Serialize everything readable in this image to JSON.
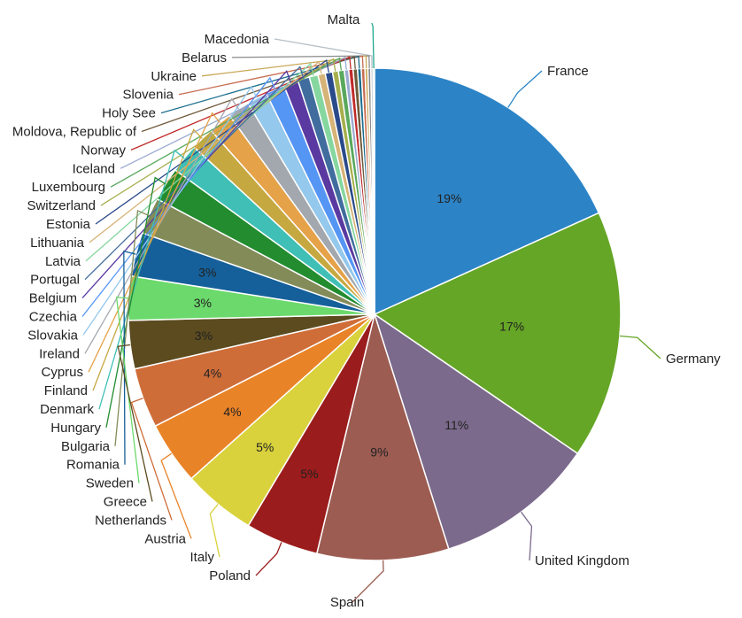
{
  "chart_data": {
    "type": "pie",
    "series": [
      {
        "name": "France",
        "value": 19.0,
        "label": "19%",
        "color": "#2c84c7"
      },
      {
        "name": "Germany",
        "value": 17.0,
        "label": "17%",
        "color": "#65a626"
      },
      {
        "name": "United Kingdom",
        "value": 11.0,
        "label": "11%",
        "color": "#7b6a8c"
      },
      {
        "name": "Spain",
        "value": 9.0,
        "label": "9%",
        "color": "#9c5c52"
      },
      {
        "name": "Poland",
        "value": 5.0,
        "label": "5%",
        "color": "#9b1c1c"
      },
      {
        "name": "Italy",
        "value": 5.0,
        "label": "5%",
        "color": "#d9d23c"
      },
      {
        "name": "Austria",
        "value": 4.3,
        "label": "4%",
        "color": "#e98327"
      },
      {
        "name": "Netherlands",
        "value": 4.1,
        "label": "4%",
        "color": "#cf6d39"
      },
      {
        "name": "Greece",
        "value": 3.3,
        "label": "3%",
        "color": "#5b4b1f"
      },
      {
        "name": "Sweden",
        "value": 3.0,
        "label": "3%",
        "color": "#6bd96b"
      },
      {
        "name": "Romania",
        "value": 3.0,
        "label": "3%",
        "color": "#15609a"
      },
      {
        "name": "Bulgaria",
        "value": 2.5,
        "label": "",
        "color": "#838c59"
      },
      {
        "name": "Hungary",
        "value": 2.3,
        "label": "",
        "color": "#228c2f"
      },
      {
        "name": "Denmark",
        "value": 2.0,
        "label": "",
        "color": "#3fbfb5"
      },
      {
        "name": "Finland",
        "value": 1.6,
        "label": "",
        "color": "#c6a840"
      },
      {
        "name": "Cyprus",
        "value": 1.6,
        "label": "",
        "color": "#e5a248"
      },
      {
        "name": "Ireland",
        "value": 1.5,
        "label": "",
        "color": "#a3a8ae"
      },
      {
        "name": "Slovakia",
        "value": 1.4,
        "label": "",
        "color": "#94c8ec"
      },
      {
        "name": "Czechia",
        "value": 1.3,
        "label": "",
        "color": "#5596f5"
      },
      {
        "name": "Belgium",
        "value": 1.0,
        "label": "",
        "color": "#5a3aa1"
      },
      {
        "name": "Portugal",
        "value": 0.8,
        "label": "",
        "color": "#406d9e"
      },
      {
        "name": "Latvia",
        "value": 0.6,
        "label": "",
        "color": "#86d6a0"
      },
      {
        "name": "Lithuania",
        "value": 0.5,
        "label": "",
        "color": "#d6b377"
      },
      {
        "name": "Estonia",
        "value": 0.5,
        "label": "",
        "color": "#2a4a8a"
      },
      {
        "name": "Switzerland",
        "value": 0.4,
        "label": "",
        "color": "#a6af4c"
      },
      {
        "name": "Luxembourg",
        "value": 0.4,
        "label": "",
        "color": "#59a85c"
      },
      {
        "name": "Iceland",
        "value": 0.3,
        "label": "",
        "color": "#9aaad0"
      },
      {
        "name": "Norway",
        "value": 0.3,
        "label": "",
        "color": "#c02a2a"
      },
      {
        "name": "Moldova, Republic of",
        "value": 0.3,
        "label": "",
        "color": "#6f5a3a"
      },
      {
        "name": "Holy See",
        "value": 0.25,
        "label": "",
        "color": "#1a6e8e"
      },
      {
        "name": "Slovenia",
        "value": 0.25,
        "label": "",
        "color": "#c86c50"
      },
      {
        "name": "Ukraine",
        "value": 0.2,
        "label": "",
        "color": "#c9a858"
      },
      {
        "name": "Belarus",
        "value": 0.2,
        "label": "",
        "color": "#8a8a8a"
      },
      {
        "name": "Macedonia",
        "value": 0.15,
        "label": "",
        "color": "#b5c0c8"
      },
      {
        "name": "Malta",
        "value": 0.1,
        "label": "",
        "color": "#1fa88a"
      }
    ]
  }
}
